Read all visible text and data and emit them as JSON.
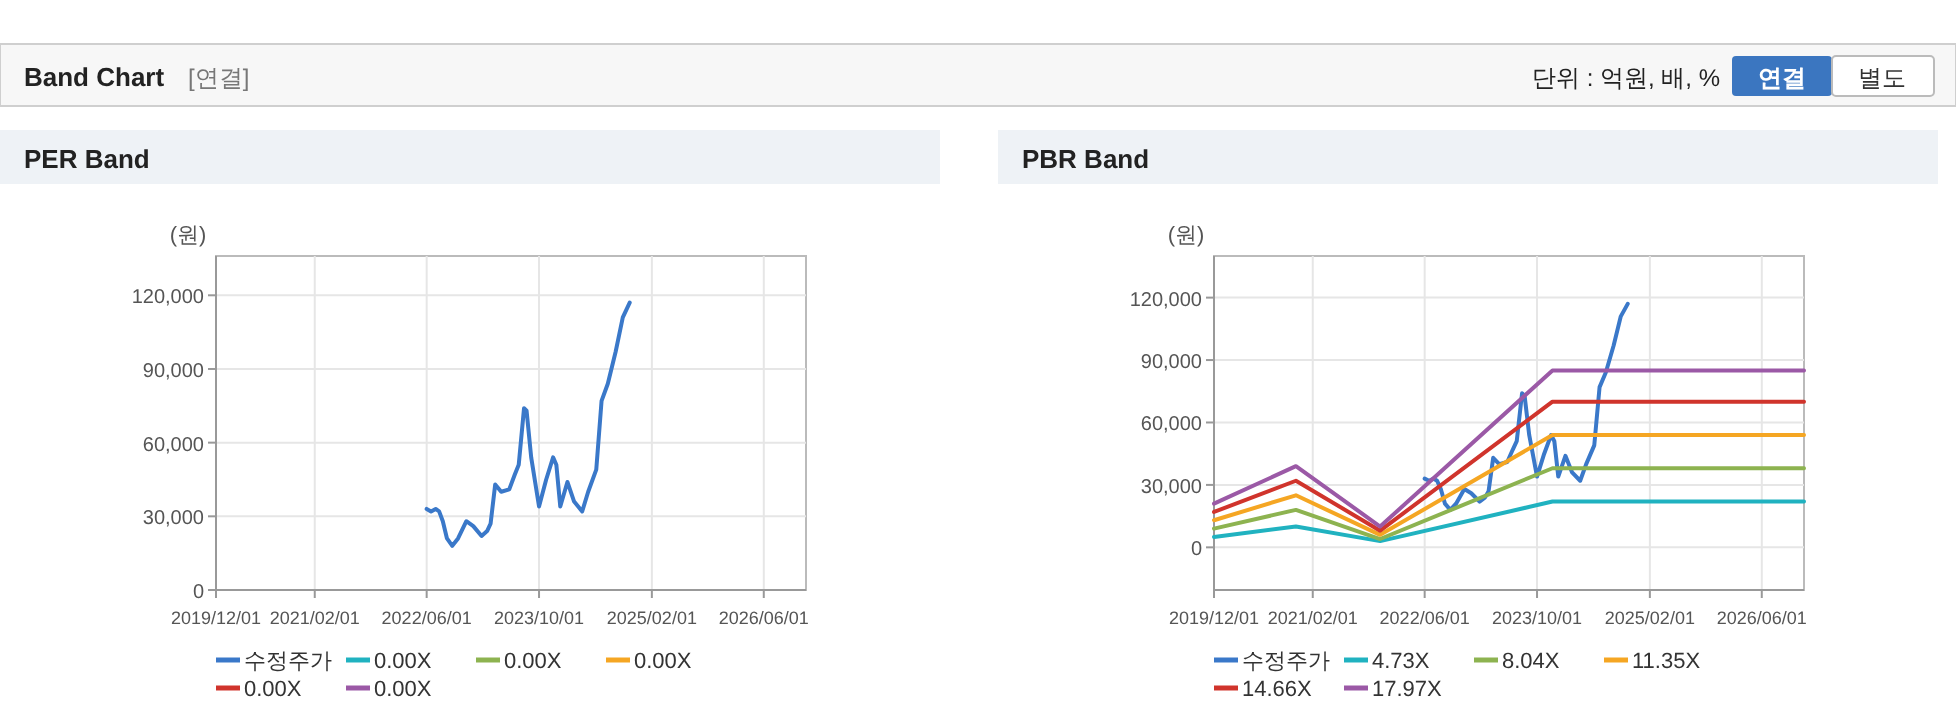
{
  "chart_data": [
    {
      "type": "other",
      "title": "Band Chart",
      "annotations": [
        "[연결]",
        "단위 : 억원, 배, %",
        "연결",
        "별도"
      ]
    },
    {
      "type": "line",
      "title": "PER Band",
      "ylabel": "(원)",
      "xlim": [
        "2019-12-01",
        "2026-12-01"
      ],
      "ylim": [
        0,
        136000
      ],
      "xticks": [
        {
          "value": "2019-12-01",
          "label": "2019/12/01"
        },
        {
          "value": "2021-02-01",
          "label": "2021/02/01"
        },
        {
          "value": "2022-06-01",
          "label": "2022/06/01"
        },
        {
          "value": "2023-10-01",
          "label": "2023/10/01"
        },
        {
          "value": "2025-02-01",
          "label": "2025/02/01"
        },
        {
          "value": "2026-06-01",
          "label": "2026/06/01"
        }
      ],
      "yticks": [
        0,
        {
          "value": 30000,
          "label": "30,000"
        },
        {
          "value": 60000,
          "label": "60,000"
        },
        {
          "value": 90000,
          "label": "90,000"
        },
        {
          "value": 120000,
          "label": "120,000"
        }
      ],
      "grid": true,
      "legend": "bottom",
      "series": [
        {
          "name": "수정주가",
          "color": "#3a78c9",
          "x": [
            "2022-06-01",
            "2022-06-20",
            "2022-07-10",
            "2022-07-25",
            "2022-08-10",
            "2022-08-28",
            "2022-09-20",
            "2022-10-15",
            "2022-11-20",
            "2022-12-20",
            "2023-01-25",
            "2023-02-18",
            "2023-03-05",
            "2023-03-25",
            "2023-04-20",
            "2023-05-25",
            "2023-06-18",
            "2023-07-05",
            "2023-07-28",
            "2023-08-08",
            "2023-08-28",
            "2023-10-01",
            "2023-11-01",
            "2023-12-01",
            "2023-12-15",
            "2024-01-01",
            "2024-02-01",
            "2024-03-01",
            "2024-04-05",
            "2024-05-01",
            "2024-06-05",
            "2024-06-28",
            "2024-07-25",
            "2024-08-28",
            "2024-09-28",
            "2024-10-28"
          ],
          "values": [
            33000,
            32000,
            33000,
            32000,
            28000,
            21000,
            18000,
            21000,
            28000,
            26000,
            22000,
            24000,
            27000,
            43000,
            40000,
            41000,
            47000,
            51000,
            74000,
            73000,
            54000,
            34000,
            45000,
            54000,
            51000,
            34000,
            44000,
            36000,
            32000,
            40000,
            49000,
            77000,
            84000,
            97000,
            111000,
            117000
          ]
        },
        {
          "name": "0.00X",
          "color": "#20b2c0"
        },
        {
          "name": "0.00X",
          "color": "#8db350"
        },
        {
          "name": "0.00X",
          "color": "#f5a623"
        },
        {
          "name": "0.00X",
          "color": "#d0342c"
        },
        {
          "name": "0.00X",
          "color": "#9b59a6"
        }
      ]
    },
    {
      "type": "line",
      "title": "PBR Band",
      "ylabel": "(원)",
      "xlim": [
        "2019-12-01",
        "2026-12-01"
      ],
      "ylim": [
        -20500,
        140000
      ],
      "xticks": [
        {
          "value": "2019-12-01",
          "label": "2019/12/01"
        },
        {
          "value": "2021-02-01",
          "label": "2021/02/01"
        },
        {
          "value": "2022-06-01",
          "label": "2022/06/01"
        },
        {
          "value": "2023-10-01",
          "label": "2023/10/01"
        },
        {
          "value": "2025-02-01",
          "label": "2025/02/01"
        },
        {
          "value": "2026-06-01",
          "label": "2026/06/01"
        }
      ],
      "yticks": [
        0,
        {
          "value": 30000,
          "label": "30,000"
        },
        {
          "value": 60000,
          "label": "60,000"
        },
        {
          "value": 90000,
          "label": "90,000"
        },
        {
          "value": 120000,
          "label": "120,000"
        }
      ],
      "grid": true,
      "legend": "bottom",
      "series": [
        {
          "name": "수정주가",
          "color": "#3a78c9",
          "x": [
            "2022-06-01",
            "2022-06-20",
            "2022-07-10",
            "2022-07-25",
            "2022-08-10",
            "2022-08-28",
            "2022-09-20",
            "2022-10-15",
            "2022-11-20",
            "2022-12-20",
            "2023-01-25",
            "2023-02-18",
            "2023-03-05",
            "2023-03-25",
            "2023-04-20",
            "2023-05-25",
            "2023-06-18",
            "2023-07-05",
            "2023-07-28",
            "2023-08-08",
            "2023-08-28",
            "2023-10-01",
            "2023-11-01",
            "2023-12-01",
            "2023-12-15",
            "2024-01-01",
            "2024-02-01",
            "2024-03-01",
            "2024-04-05",
            "2024-05-01",
            "2024-06-05",
            "2024-06-28",
            "2024-07-25",
            "2024-08-28",
            "2024-09-28",
            "2024-10-28"
          ],
          "values": [
            33000,
            32000,
            33000,
            32000,
            28000,
            21000,
            18000,
            21000,
            28000,
            26000,
            22000,
            24000,
            27000,
            43000,
            40000,
            41000,
            47000,
            51000,
            74000,
            73000,
            54000,
            34000,
            45000,
            54000,
            51000,
            34000,
            44000,
            36000,
            32000,
            40000,
            49000,
            77000,
            84000,
            97000,
            111000,
            117000
          ]
        },
        {
          "name": "4.73X",
          "color": "#20b2c0",
          "x": [
            "2019-12-01",
            "2020-11-20",
            "2021-11-20",
            "2023-12-07",
            "2026-12-01"
          ],
          "values": [
            5000,
            10000,
            3000,
            22000,
            22000
          ]
        },
        {
          "name": "8.04X",
          "color": "#8db350",
          "x": [
            "2019-12-01",
            "2020-11-20",
            "2021-11-20",
            "2023-12-07",
            "2026-12-01"
          ],
          "values": [
            9000,
            18000,
            4000,
            38000,
            38000
          ]
        },
        {
          "name": "11.35X",
          "color": "#f5a623",
          "x": [
            "2019-12-01",
            "2020-11-20",
            "2021-11-20",
            "2023-12-07",
            "2026-12-01"
          ],
          "values": [
            13000,
            25000,
            6000,
            54000,
            54000
          ]
        },
        {
          "name": "14.66X",
          "color": "#d0342c",
          "x": [
            "2019-12-01",
            "2020-11-20",
            "2021-11-20",
            "2023-12-07",
            "2026-12-01"
          ],
          "values": [
            17000,
            32000,
            8000,
            70000,
            70000
          ]
        },
        {
          "name": "17.97X",
          "color": "#9b59a6",
          "x": [
            "2019-12-01",
            "2020-11-20",
            "2021-11-20",
            "2023-12-07",
            "2026-12-01"
          ],
          "values": [
            21000,
            39000,
            10000,
            85000,
            85000
          ]
        }
      ]
    }
  ]
}
